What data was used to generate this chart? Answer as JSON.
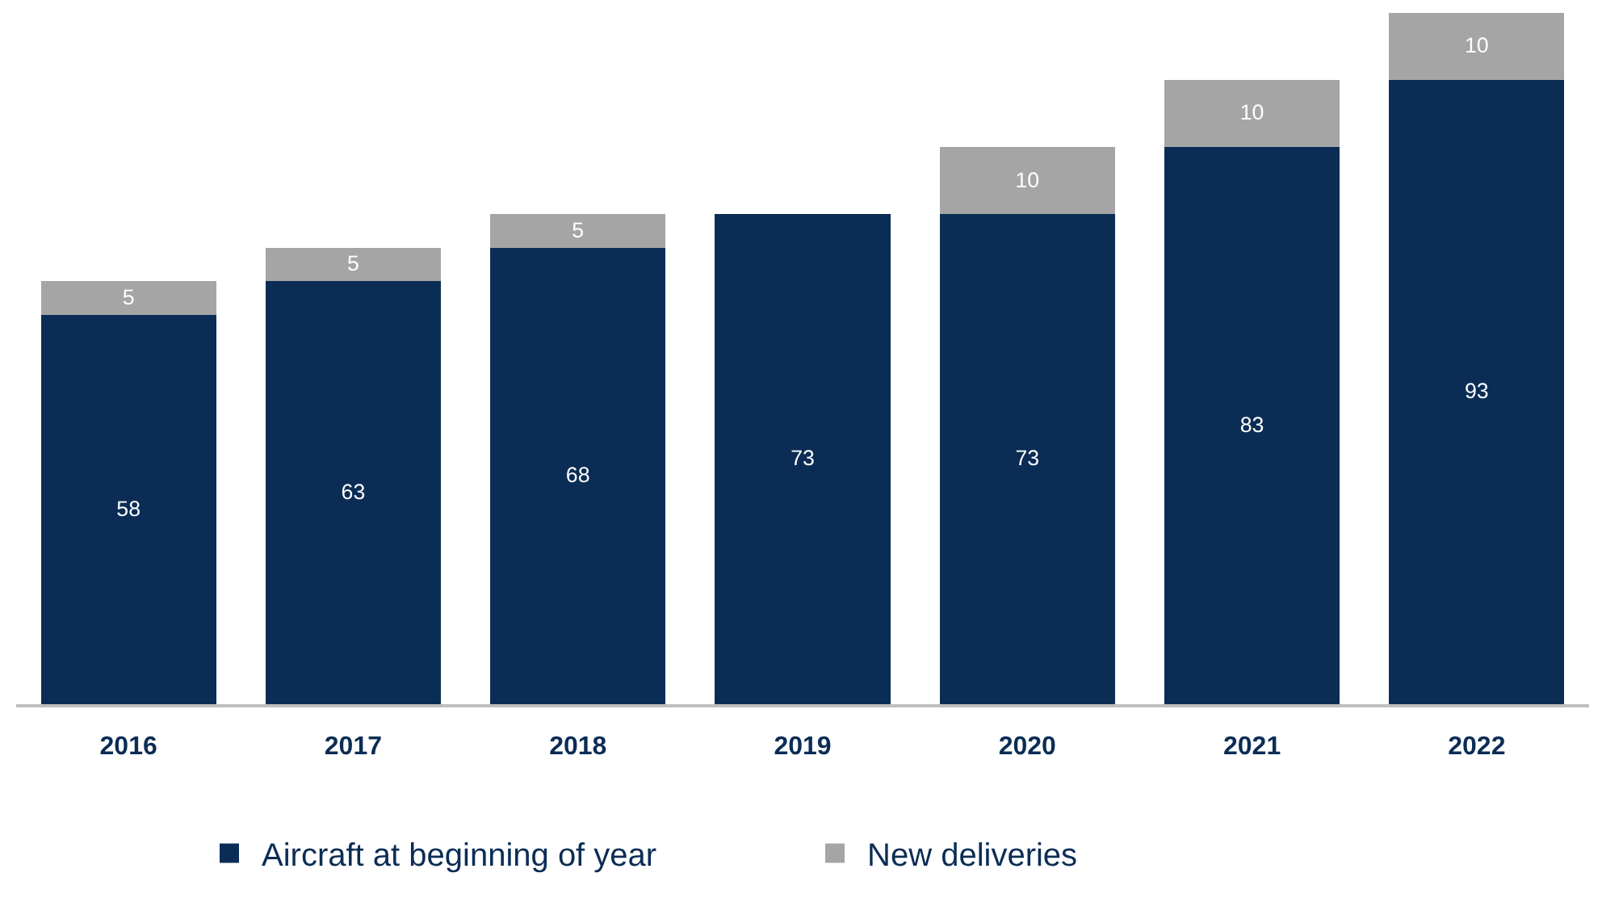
{
  "chart_data": {
    "type": "bar",
    "stacked": true,
    "categories": [
      "2016",
      "2017",
      "2018",
      "2019",
      "2020",
      "2021",
      "2022"
    ],
    "series": [
      {
        "name": "Aircraft at beginning of year",
        "color": "#0b2d55",
        "values": [
          58,
          63,
          68,
          73,
          73,
          83,
          93
        ]
      },
      {
        "name": "New deliveries",
        "color": "#a5a5a5",
        "values": [
          5,
          5,
          5,
          null,
          10,
          10,
          10
        ]
      }
    ],
    "data_labels": true,
    "legend": "bottom",
    "tick_labels": "x"
  }
}
